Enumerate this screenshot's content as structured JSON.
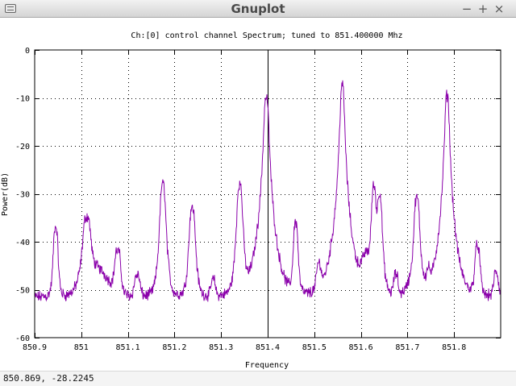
{
  "window": {
    "title": "Gnuplot",
    "controls": {
      "close": "×",
      "maximize": "+",
      "minimize": "−"
    }
  },
  "status": {
    "coords": "850.869, -28.2245"
  },
  "colors": {
    "series": "#8a00aa",
    "marker": "#000000",
    "grid": "#000000"
  },
  "chart_data": {
    "type": "line",
    "title": "Ch:[0] control channel Spectrum; tuned to 851.400000 Mhz",
    "xlabel": "Frequency",
    "ylabel": "Power(dB)",
    "xlim": [
      850.9,
      851.9
    ],
    "ylim": [
      -60,
      0
    ],
    "xticks": [
      850.9,
      851.0,
      851.1,
      851.2,
      851.3,
      851.4,
      851.5,
      851.6,
      851.7,
      851.8
    ],
    "xtick_labels": [
      "850.9",
      "851",
      "851.1",
      "851.2",
      "851.3",
      "851.4",
      "851.5",
      "851.6",
      "851.7",
      "851.8"
    ],
    "yticks": [
      0,
      -10,
      -20,
      -30,
      -40,
      -50,
      -60
    ],
    "ytick_labels": [
      "0",
      "-10",
      "-20",
      "-30",
      "-40",
      "-50",
      "-60"
    ],
    "grid": true,
    "marker_line_x": 851.4,
    "noise_floor": -51.5,
    "peaks": [
      {
        "x": 850.945,
        "y": -37,
        "w": 0.004
      },
      {
        "x": 851.012,
        "y": -35,
        "w": 0.007
      },
      {
        "x": 851.078,
        "y": -42,
        "w": 0.006
      },
      {
        "x": 851.12,
        "y": -47,
        "w": 0.006
      },
      {
        "x": 851.175,
        "y": -28,
        "w": 0.0045
      },
      {
        "x": 851.238,
        "y": -33,
        "w": 0.005
      },
      {
        "x": 851.283,
        "y": -48,
        "w": 0.005
      },
      {
        "x": 851.34,
        "y": -28,
        "w": 0.0045
      },
      {
        "x": 851.397,
        "y": -10,
        "w": 0.004
      },
      {
        "x": 851.46,
        "y": -36,
        "w": 0.004
      },
      {
        "x": 851.51,
        "y": -45,
        "w": 0.005
      },
      {
        "x": 851.56,
        "y": -7.5,
        "w": 0.0035
      },
      {
        "x": 851.61,
        "y": -46,
        "w": 0.006
      },
      {
        "x": 851.628,
        "y": -28.5,
        "w": 0.004
      },
      {
        "x": 851.64,
        "y": -30,
        "w": 0.004
      },
      {
        "x": 851.675,
        "y": -47,
        "w": 0.005
      },
      {
        "x": 851.72,
        "y": -31,
        "w": 0.0045
      },
      {
        "x": 851.745,
        "y": -47,
        "w": 0.004
      },
      {
        "x": 851.785,
        "y": -9.5,
        "w": 0.0035
      },
      {
        "x": 851.85,
        "y": -41,
        "w": 0.005
      },
      {
        "x": 851.89,
        "y": -46.5,
        "w": 0.005
      }
    ],
    "broad_bumps": [
      {
        "x": 851.03,
        "y": -45.5,
        "w": 0.03
      },
      {
        "x": 851.615,
        "y": -44.5,
        "w": 0.02
      },
      {
        "x": 851.72,
        "y": -47.5,
        "w": 0.02
      }
    ]
  }
}
